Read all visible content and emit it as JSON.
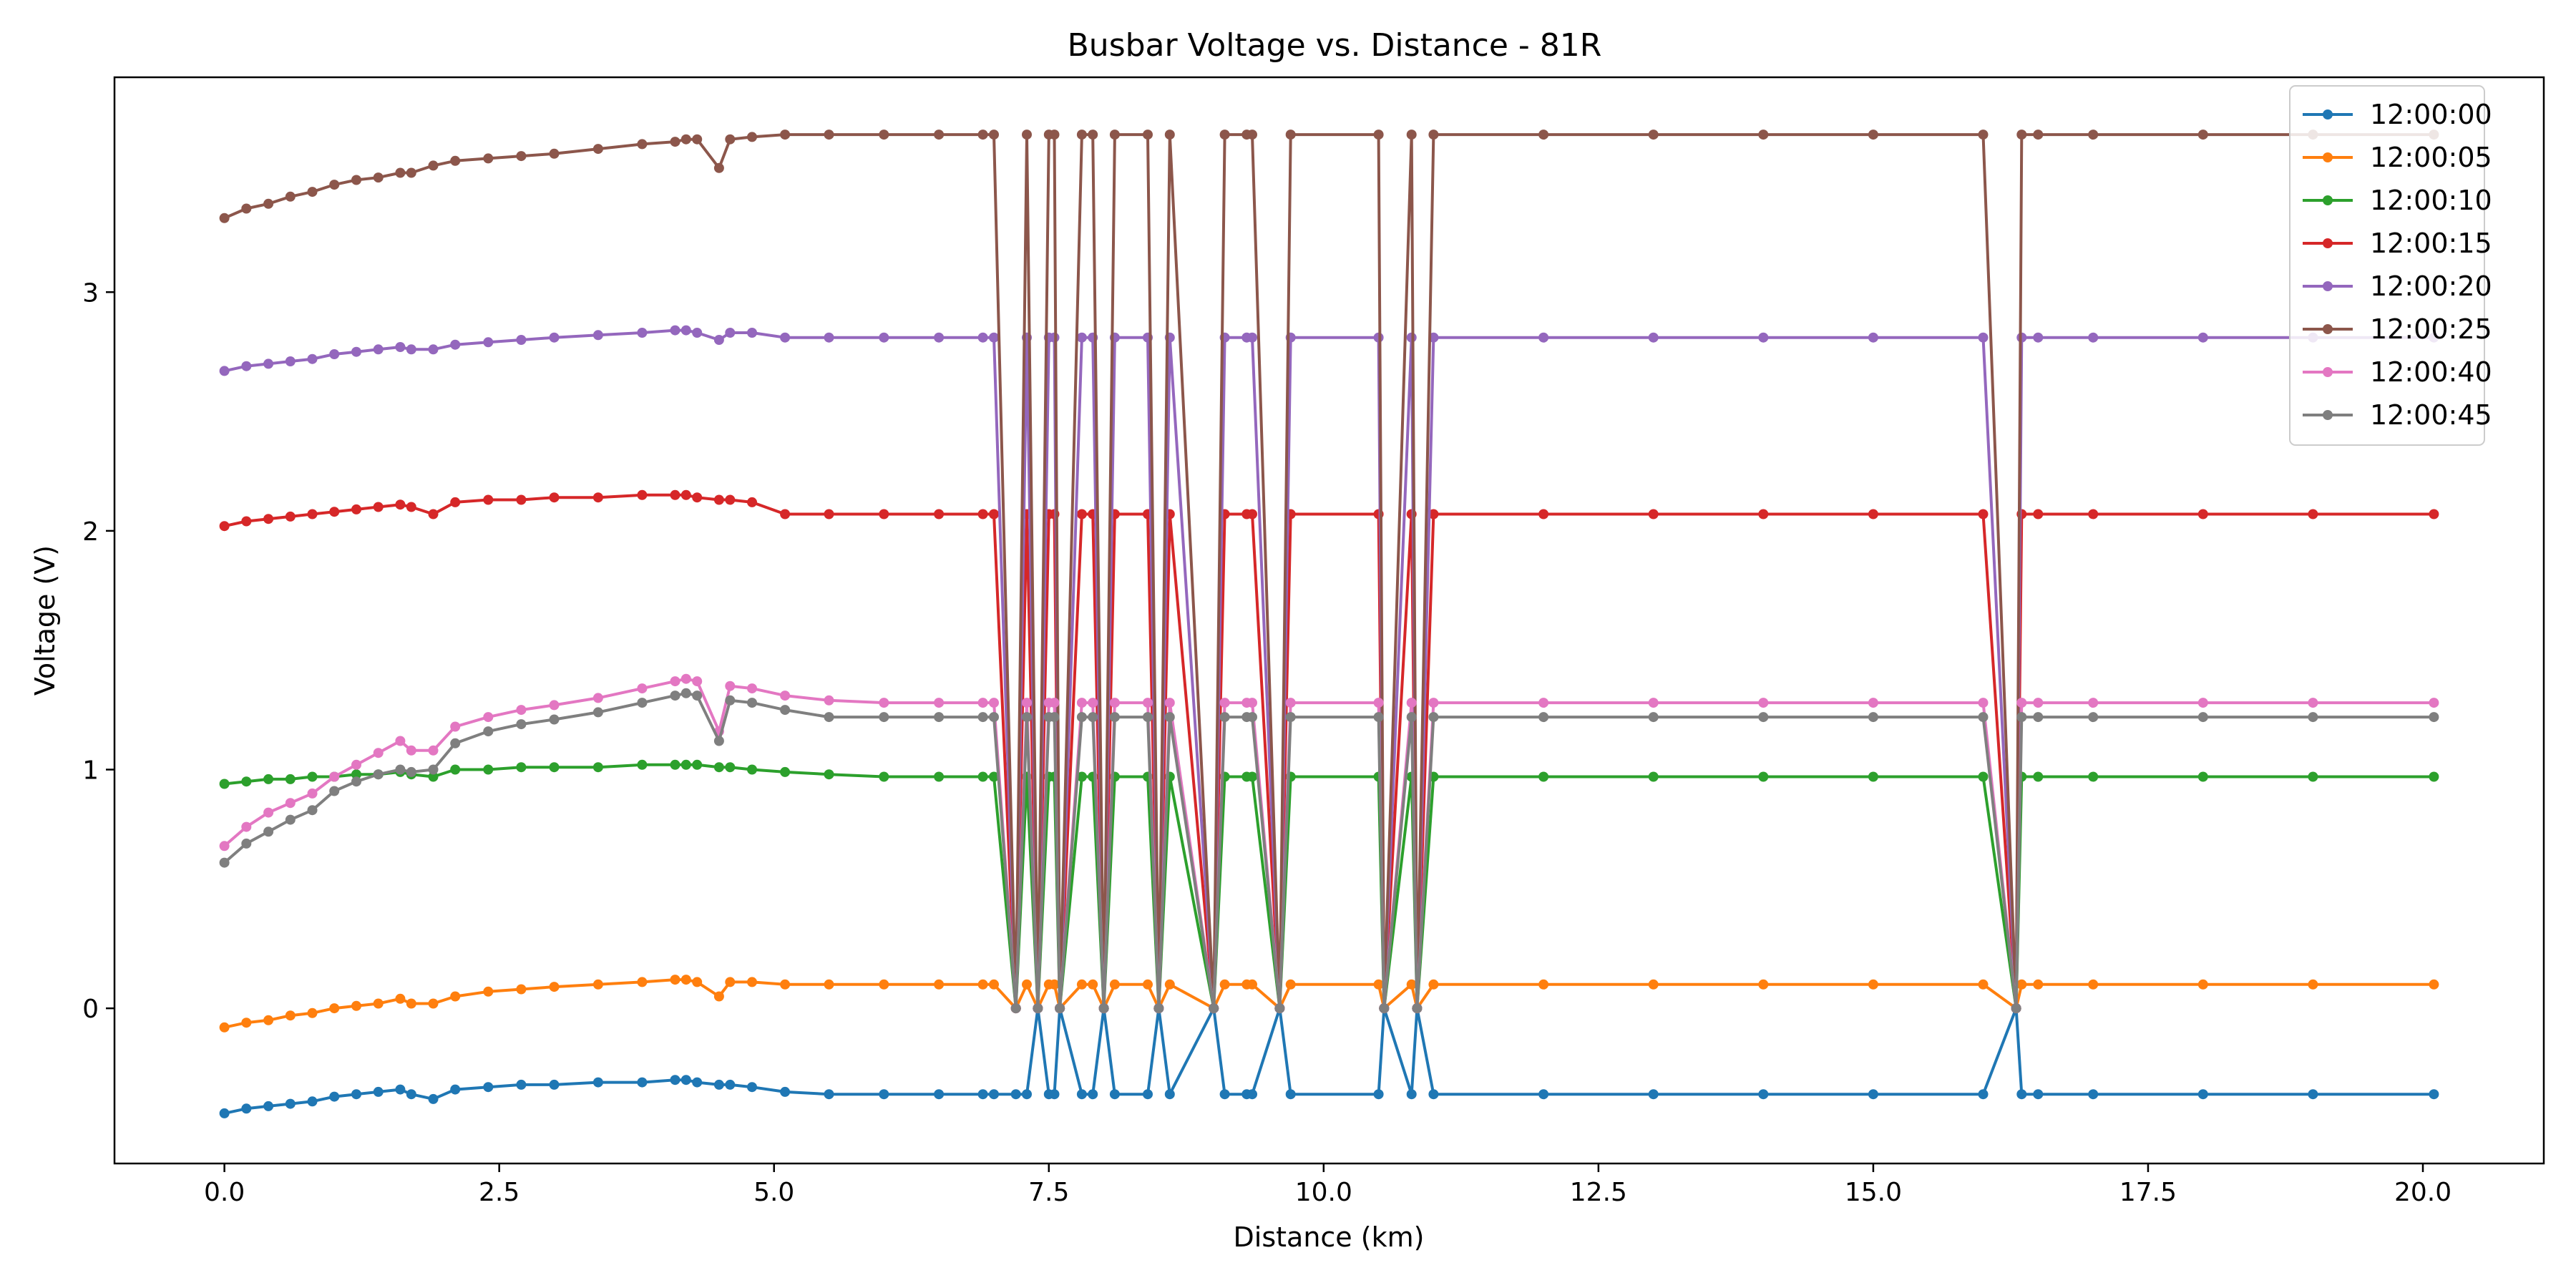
{
  "chart_data": {
    "type": "line",
    "title": "Busbar Voltage vs. Distance - 81R",
    "xlabel": "Distance (km)",
    "ylabel": "Voltage (V)",
    "xlim": [
      -1.0,
      21.1
    ],
    "ylim": [
      -0.65,
      3.9
    ],
    "xticks": [
      0.0,
      2.5,
      5.0,
      7.5,
      10.0,
      12.5,
      15.0,
      17.5,
      20.0
    ],
    "xtick_labels": [
      "0.0",
      "2.5",
      "5.0",
      "7.5",
      "10.0",
      "12.5",
      "15.0",
      "17.5",
      "20.0"
    ],
    "yticks": [
      0,
      1,
      2,
      3
    ],
    "ytick_labels": [
      "0",
      "1",
      "2",
      "3"
    ],
    "grid": false,
    "legend_position": "top-right",
    "x": [
      0.0,
      0.2,
      0.4,
      0.6,
      0.8,
      1.0,
      1.2,
      1.4,
      1.6,
      1.7,
      1.9,
      2.1,
      2.4,
      2.7,
      3.0,
      3.4,
      3.8,
      4.1,
      4.2,
      4.3,
      4.5,
      4.6,
      4.8,
      5.1,
      5.5,
      6.0,
      6.5,
      6.9,
      7.0,
      7.2,
      7.3,
      7.4,
      7.5,
      7.55,
      7.6,
      7.8,
      7.9,
      8.0,
      8.1,
      8.4,
      8.5,
      8.6,
      9.0,
      9.1,
      9.3,
      9.35,
      9.6,
      9.7,
      10.5,
      10.55,
      10.8,
      10.85,
      11.0,
      12.0,
      13.0,
      14.0,
      15.0,
      16.0,
      16.3,
      16.35,
      16.5,
      17.0,
      18.0,
      19.0,
      20.1
    ],
    "series": [
      {
        "name": "12:00:00",
        "color": "#1f77b4",
        "values": [
          -0.44,
          -0.42,
          -0.41,
          -0.4,
          -0.39,
          -0.37,
          -0.36,
          -0.35,
          -0.34,
          -0.36,
          -0.38,
          -0.34,
          -0.33,
          -0.32,
          -0.32,
          -0.31,
          -0.31,
          -0.3,
          -0.3,
          -0.31,
          -0.32,
          -0.32,
          -0.33,
          -0.35,
          -0.36,
          -0.36,
          -0.36,
          -0.36,
          -0.36,
          -0.36,
          -0.36,
          0.0,
          -0.36,
          -0.36,
          0.0,
          -0.36,
          -0.36,
          0.0,
          -0.36,
          -0.36,
          0.0,
          -0.36,
          0.0,
          -0.36,
          -0.36,
          -0.36,
          0.0,
          -0.36,
          -0.36,
          0.0,
          -0.36,
          0.0,
          -0.36,
          -0.36,
          -0.36,
          -0.36,
          -0.36,
          -0.36,
          0.0,
          -0.36,
          -0.36,
          -0.36,
          -0.36,
          -0.36,
          -0.36
        ]
      },
      {
        "name": "12:00:05",
        "color": "#ff7f0e",
        "values": [
          -0.08,
          -0.06,
          -0.05,
          -0.03,
          -0.02,
          0.0,
          0.01,
          0.02,
          0.04,
          0.02,
          0.02,
          0.05,
          0.07,
          0.08,
          0.09,
          0.1,
          0.11,
          0.12,
          0.12,
          0.11,
          0.05,
          0.11,
          0.11,
          0.1,
          0.1,
          0.1,
          0.1,
          0.1,
          0.1,
          0.0,
          0.1,
          0.0,
          0.1,
          0.1,
          0.0,
          0.1,
          0.1,
          0.0,
          0.1,
          0.1,
          0.0,
          0.1,
          0.0,
          0.1,
          0.1,
          0.1,
          0.0,
          0.1,
          0.1,
          0.0,
          0.1,
          0.0,
          0.1,
          0.1,
          0.1,
          0.1,
          0.1,
          0.1,
          0.0,
          0.1,
          0.1,
          0.1,
          0.1,
          0.1,
          0.1
        ]
      },
      {
        "name": "12:00:10",
        "color": "#2ca02c",
        "values": [
          0.94,
          0.95,
          0.96,
          0.96,
          0.97,
          0.97,
          0.98,
          0.98,
          0.99,
          0.98,
          0.97,
          1.0,
          1.0,
          1.01,
          1.01,
          1.01,
          1.02,
          1.02,
          1.02,
          1.02,
          1.01,
          1.01,
          1.0,
          0.99,
          0.98,
          0.97,
          0.97,
          0.97,
          0.97,
          0.0,
          0.97,
          0.0,
          0.97,
          0.97,
          0.0,
          0.97,
          0.97,
          0.0,
          0.97,
          0.97,
          0.0,
          0.97,
          0.0,
          0.97,
          0.97,
          0.97,
          0.0,
          0.97,
          0.97,
          0.0,
          0.97,
          0.0,
          0.97,
          0.97,
          0.97,
          0.97,
          0.97,
          0.97,
          0.0,
          0.97,
          0.97,
          0.97,
          0.97,
          0.97,
          0.97
        ]
      },
      {
        "name": "12:00:15",
        "color": "#d62728",
        "values": [
          2.02,
          2.04,
          2.05,
          2.06,
          2.07,
          2.08,
          2.09,
          2.1,
          2.11,
          2.1,
          2.07,
          2.12,
          2.13,
          2.13,
          2.14,
          2.14,
          2.15,
          2.15,
          2.15,
          2.14,
          2.13,
          2.13,
          2.12,
          2.07,
          2.07,
          2.07,
          2.07,
          2.07,
          2.07,
          0.0,
          2.07,
          0.0,
          2.07,
          2.07,
          0.0,
          2.07,
          2.07,
          0.0,
          2.07,
          2.07,
          0.0,
          2.07,
          0.0,
          2.07,
          2.07,
          2.07,
          0.0,
          2.07,
          2.07,
          0.0,
          2.07,
          0.0,
          2.07,
          2.07,
          2.07,
          2.07,
          2.07,
          2.07,
          0.0,
          2.07,
          2.07,
          2.07,
          2.07,
          2.07,
          2.07
        ]
      },
      {
        "name": "12:00:20",
        "color": "#9467bd",
        "values": [
          2.67,
          2.69,
          2.7,
          2.71,
          2.72,
          2.74,
          2.75,
          2.76,
          2.77,
          2.76,
          2.76,
          2.78,
          2.79,
          2.8,
          2.81,
          2.82,
          2.83,
          2.84,
          2.84,
          2.83,
          2.8,
          2.83,
          2.83,
          2.81,
          2.81,
          2.81,
          2.81,
          2.81,
          2.81,
          0.0,
          2.81,
          0.0,
          2.81,
          2.81,
          0.0,
          2.81,
          2.81,
          0.0,
          2.81,
          2.81,
          0.0,
          2.81,
          0.0,
          2.81,
          2.81,
          2.81,
          0.0,
          2.81,
          2.81,
          0.0,
          2.81,
          0.0,
          2.81,
          2.81,
          2.81,
          2.81,
          2.81,
          2.81,
          0.0,
          2.81,
          2.81,
          2.81,
          2.81,
          2.81,
          2.81
        ]
      },
      {
        "name": "12:00:25",
        "color": "#8c564b",
        "values": [
          3.31,
          3.35,
          3.37,
          3.4,
          3.42,
          3.45,
          3.47,
          3.48,
          3.5,
          3.5,
          3.53,
          3.55,
          3.56,
          3.57,
          3.58,
          3.6,
          3.62,
          3.63,
          3.64,
          3.64,
          3.52,
          3.64,
          3.65,
          3.66,
          3.66,
          3.66,
          3.66,
          3.66,
          3.66,
          0.0,
          3.66,
          0.0,
          3.66,
          3.66,
          0.0,
          3.66,
          3.66,
          0.0,
          3.66,
          3.66,
          0.0,
          3.66,
          0.0,
          3.66,
          3.66,
          3.66,
          0.0,
          3.66,
          3.66,
          0.0,
          3.66,
          0.0,
          3.66,
          3.66,
          3.66,
          3.66,
          3.66,
          3.66,
          0.0,
          3.66,
          3.66,
          3.66,
          3.66,
          3.66,
          3.66
        ]
      },
      {
        "name": "12:00:40",
        "color": "#e377c2",
        "values": [
          0.68,
          0.76,
          0.82,
          0.86,
          0.9,
          0.97,
          1.02,
          1.07,
          1.12,
          1.08,
          1.08,
          1.18,
          1.22,
          1.25,
          1.27,
          1.3,
          1.34,
          1.37,
          1.38,
          1.37,
          1.16,
          1.35,
          1.34,
          1.31,
          1.29,
          1.28,
          1.28,
          1.28,
          1.28,
          0.0,
          1.28,
          0.0,
          1.28,
          1.28,
          0.0,
          1.28,
          1.28,
          0.0,
          1.28,
          1.28,
          0.0,
          1.28,
          0.0,
          1.28,
          1.28,
          1.28,
          0.0,
          1.28,
          1.28,
          0.0,
          1.28,
          0.0,
          1.28,
          1.28,
          1.28,
          1.28,
          1.28,
          1.28,
          0.0,
          1.28,
          1.28,
          1.28,
          1.28,
          1.28,
          1.28
        ]
      },
      {
        "name": "12:00:45",
        "color": "#7f7f7f",
        "values": [
          0.61,
          0.69,
          0.74,
          0.79,
          0.83,
          0.91,
          0.95,
          0.98,
          1.0,
          0.99,
          1.0,
          1.11,
          1.16,
          1.19,
          1.21,
          1.24,
          1.28,
          1.31,
          1.32,
          1.31,
          1.12,
          1.29,
          1.28,
          1.25,
          1.22,
          1.22,
          1.22,
          1.22,
          1.22,
          0.0,
          1.22,
          0.0,
          1.22,
          1.22,
          0.0,
          1.22,
          1.22,
          0.0,
          1.22,
          1.22,
          0.0,
          1.22,
          0.0,
          1.22,
          1.22,
          1.22,
          0.0,
          1.22,
          1.22,
          0.0,
          1.22,
          0.0,
          1.22,
          1.22,
          1.22,
          1.22,
          1.22,
          1.22,
          0.0,
          1.22,
          1.22,
          1.22,
          1.22,
          1.22,
          1.22
        ]
      }
    ]
  }
}
